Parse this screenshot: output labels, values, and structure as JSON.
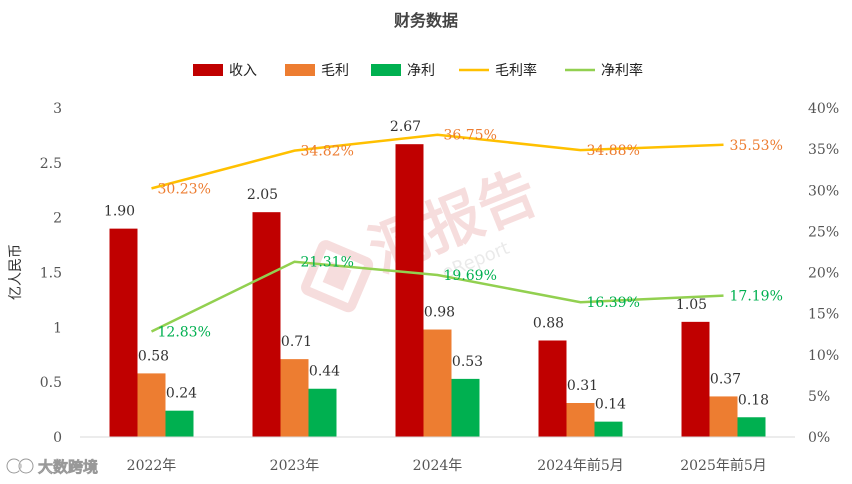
{
  "chart_data": {
    "type": "bar",
    "title": "财务数据",
    "ylabel": "亿人民币",
    "categories": [
      "2022年",
      "2023年",
      "2024年",
      "2024年前5月",
      "2025年前5月"
    ],
    "ylim": [
      0,
      3
    ],
    "yticks": [
      "0",
      "0.5",
      "1",
      "1.5",
      "2",
      "2.5",
      "3"
    ],
    "y2lim": [
      0,
      40
    ],
    "y2ticks": [
      "0%",
      "5%",
      "10%",
      "15%",
      "20%",
      "25%",
      "30%",
      "35%",
      "40%"
    ],
    "legend_position": "top",
    "bar_series": [
      {
        "name": "收入",
        "color": "#c00000",
        "values": [
          1.9,
          2.05,
          2.67,
          0.88,
          1.05
        ],
        "labels": [
          "1.90",
          "2.05",
          "2.67",
          "0.88",
          "1.05"
        ]
      },
      {
        "name": "毛利",
        "color": "#ed7d31",
        "values": [
          0.58,
          0.71,
          0.98,
          0.31,
          0.37
        ],
        "labels": [
          "0.58",
          "0.71",
          "0.98",
          "0.31",
          "0.37"
        ]
      },
      {
        "name": "净利",
        "color": "#00b050",
        "values": [
          0.24,
          0.44,
          0.53,
          0.14,
          0.18
        ],
        "labels": [
          "0.24",
          "0.44",
          "0.53",
          "0.14",
          "0.18"
        ]
      }
    ],
    "line_series": [
      {
        "name": "毛利率",
        "color": "#ffc000",
        "label_color": "#ed7d31",
        "values": [
          30.23,
          34.82,
          36.75,
          34.88,
          35.53
        ],
        "labels": [
          "30.23%",
          "34.82%",
          "36.75%",
          "34.88%",
          "35.53%"
        ]
      },
      {
        "name": "净利率",
        "color": "#92d050",
        "label_color": "#00b050",
        "values": [
          12.83,
          21.31,
          19.69,
          16.39,
          17.19
        ],
        "labels": [
          "12.83%",
          "21.31%",
          "19.69%",
          "16.39%",
          "17.19%"
        ]
      }
    ]
  },
  "watermark": {
    "text": "洞报告",
    "sub": "eReport"
  },
  "footer": {
    "brand": "大数跨境"
  }
}
